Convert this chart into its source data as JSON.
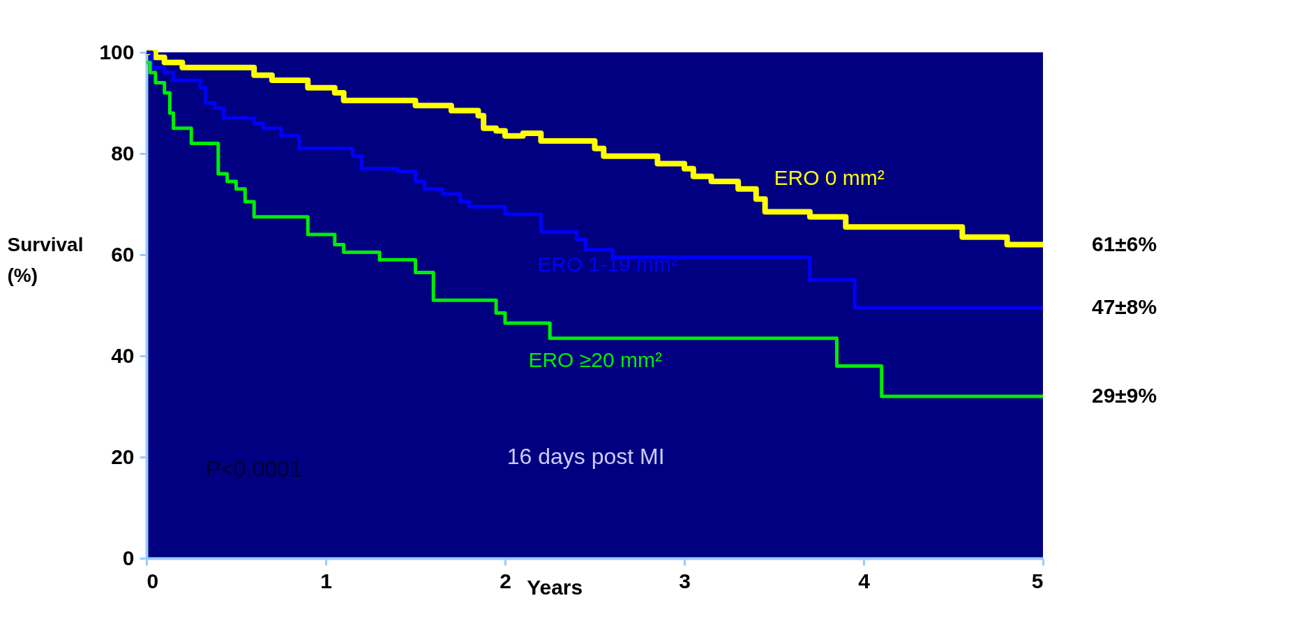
{
  "chart_data": {
    "type": "step",
    "xlabel": "Years",
    "ylabel": "Survival (%)",
    "xlim": [
      0,
      5
    ],
    "xticks": [
      0,
      1,
      2,
      3,
      4,
      5
    ],
    "ylim": [
      0,
      100
    ],
    "yticks": [
      0,
      20,
      40,
      60,
      80,
      100
    ],
    "grid": false,
    "line_style": "solid",
    "series": [
      {
        "name": "ERO  0 mm²",
        "color": "#ffff00",
        "x": [
          0,
          0.05,
          0.1,
          0.2,
          0.6,
          0.7,
          0.9,
          1.05,
          1.1,
          1.5,
          1.7,
          1.85,
          1.88,
          1.95,
          2.0,
          2.1,
          2.2,
          2.5,
          2.55,
          2.85,
          3.0,
          3.05,
          3.15,
          3.3,
          3.4,
          3.45,
          3.7,
          3.9,
          4.55,
          4.8,
          5
        ],
        "values": [
          100,
          99,
          98,
          97,
          95.5,
          94.5,
          93,
          92,
          90.5,
          89.5,
          88.5,
          87.5,
          85,
          84.5,
          83.5,
          84,
          82.5,
          81,
          79.5,
          78,
          77,
          75.5,
          74.5,
          73,
          71,
          68.5,
          67.5,
          65.5,
          63.5,
          62,
          62
        ]
      },
      {
        "name": "ERO  1-19 mm²",
        "color": "#0000ff",
        "x": [
          0,
          0.03,
          0.1,
          0.15,
          0.3,
          0.33,
          0.38,
          0.43,
          0.6,
          0.65,
          0.75,
          0.85,
          1.15,
          1.2,
          1.4,
          1.5,
          1.55,
          1.65,
          1.75,
          1.8,
          2.0,
          2.2,
          2.4,
          2.45,
          2.6,
          3.7,
          3.95,
          5
        ],
        "values": [
          100,
          97,
          96,
          94.5,
          93,
          90,
          89,
          87,
          86,
          85,
          83.5,
          81,
          79.5,
          77,
          76.5,
          74.5,
          73,
          72,
          70.5,
          69.5,
          68,
          64.5,
          63,
          61,
          59.5,
          55,
          49.5,
          49.5
        ]
      },
      {
        "name": "ERO  ≥20 mm²",
        "color": "#00ee00",
        "x": [
          0,
          0.02,
          0.05,
          0.1,
          0.13,
          0.15,
          0.25,
          0.4,
          0.45,
          0.5,
          0.55,
          0.6,
          0.9,
          1.05,
          1.1,
          1.3,
          1.5,
          1.6,
          1.95,
          2.0,
          2.25,
          3.85,
          4.1,
          5
        ],
        "values": [
          98,
          96,
          94,
          92,
          88,
          85,
          82,
          76,
          74.5,
          73,
          70.5,
          67.5,
          64,
          62,
          60.5,
          59,
          56.5,
          51,
          48.5,
          46.5,
          43.5,
          38,
          32,
          32
        ]
      }
    ],
    "annotations": [
      "61±6%",
      "47±8%",
      "29±9%",
      "16 days post MI",
      "P<0.0001"
    ]
  }
}
